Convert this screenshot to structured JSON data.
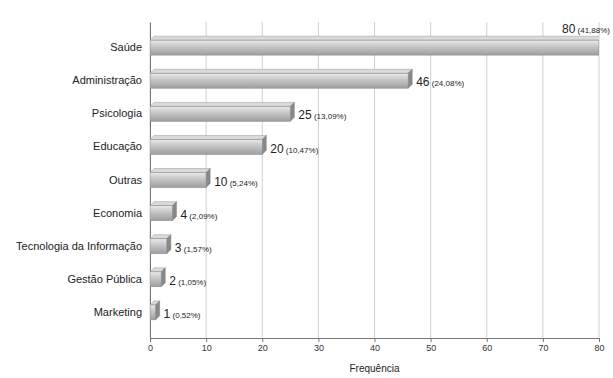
{
  "chart_data": {
    "type": "bar",
    "orientation": "horizontal",
    "categories": [
      "Saúde",
      "Administração",
      "Psicologia",
      "Educação",
      "Outras",
      "Economia",
      "Tecnologia da Informação",
      "Gestão Pública",
      "Marketing"
    ],
    "values": [
      80,
      46,
      25,
      20,
      10,
      4,
      3,
      2,
      1
    ],
    "value_labels": [
      "80 (41,88%)",
      "46 (24,08%)",
      "25 (13,09%)",
      "20 (10,47%)",
      "10 (5,24%)",
      "4 (2,09%)",
      "3 (1,57%)",
      "2 (1,05%)",
      "1 (0,52%)"
    ],
    "data_labels": true,
    "color": "#c4c4c4",
    "xlabel": "Frequência",
    "xlim": [
      0,
      80
    ],
    "xticks": [
      0,
      10,
      20,
      30,
      40,
      50,
      60,
      70,
      80
    ],
    "grid": true
  }
}
